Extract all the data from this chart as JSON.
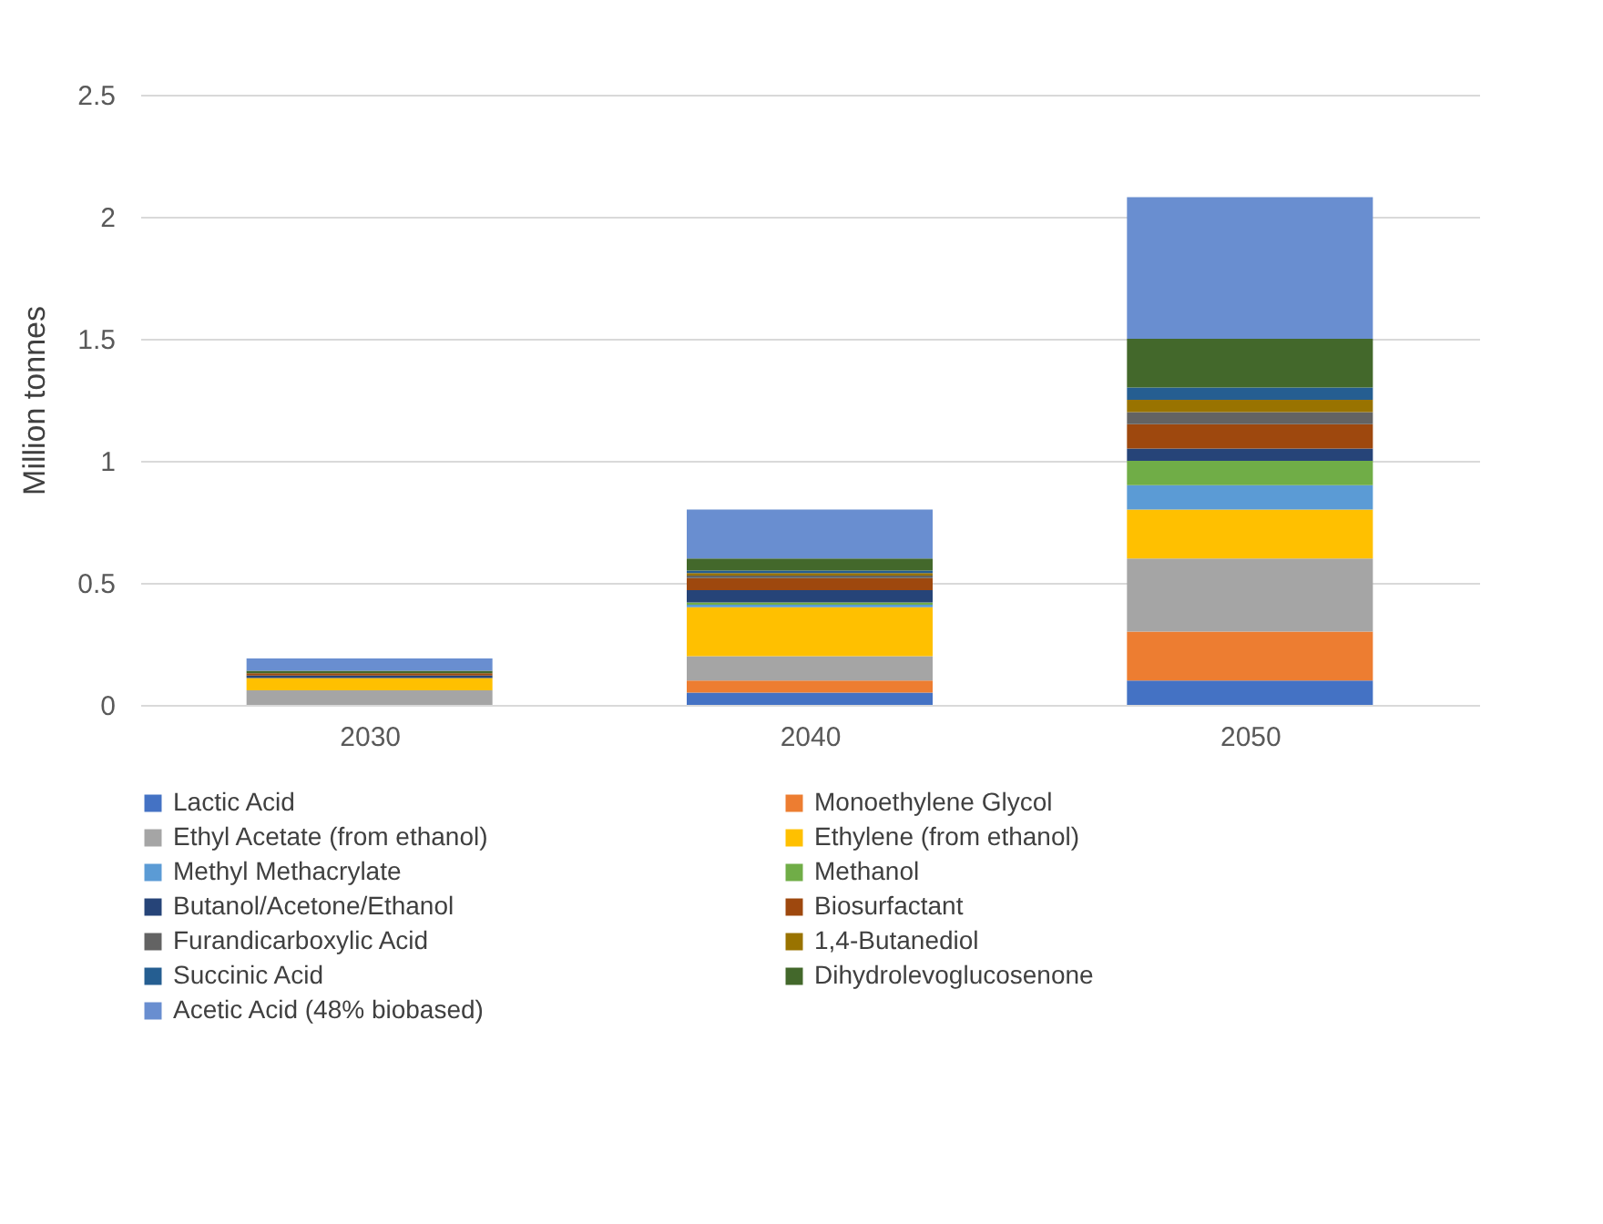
{
  "chart_data": {
    "type": "bar",
    "stacked": true,
    "ylabel": "Million tonnes",
    "categories": [
      "2030",
      "2040",
      "2050"
    ],
    "series": [
      {
        "name": "Lactic Acid",
        "color": "#4472c4",
        "values": [
          0,
          0.05,
          0.1
        ]
      },
      {
        "name": "Monoethylene Glycol",
        "color": "#ed7d31",
        "values": [
          0,
          0.05,
          0.2
        ]
      },
      {
        "name": "Ethyl Acetate (from ethanol)",
        "color": "#a5a5a5",
        "values": [
          0.06,
          0.1,
          0.3
        ]
      },
      {
        "name": "Ethylene (from ethanol)",
        "color": "#ffc000",
        "values": [
          0.05,
          0.2,
          0.2
        ]
      },
      {
        "name": "Methyl Methacrylate",
        "color": "#5b9bd5",
        "values": [
          0,
          0.01,
          0.1
        ]
      },
      {
        "name": "Methanol",
        "color": "#70ad47",
        "values": [
          0,
          0.01,
          0.1
        ]
      },
      {
        "name": "Butanol/Acetone/Ethanol",
        "color": "#264478",
        "values": [
          0.01,
          0.05,
          0.05
        ]
      },
      {
        "name": "Biosurfactant",
        "color": "#9e480e",
        "values": [
          0.01,
          0.05,
          0.1
        ]
      },
      {
        "name": "Furandicarboxylic Acid",
        "color": "#636363",
        "values": [
          0,
          0.01,
          0.05
        ]
      },
      {
        "name": "1,4-Butanediol",
        "color": "#997300",
        "values": [
          0,
          0.01,
          0.05
        ]
      },
      {
        "name": "Succinic Acid",
        "color": "#255e91",
        "values": [
          0,
          0.01,
          0.05
        ]
      },
      {
        "name": "Dihydrolevoglucosenone",
        "color": "#43682b",
        "values": [
          0.01,
          0.05,
          0.2
        ]
      },
      {
        "name": "Acetic Acid (48% biobased)",
        "color": "#698ed0",
        "values": [
          0.05,
          0.2,
          0.58
        ]
      }
    ],
    "ylim": [
      0,
      2.5
    ],
    "yticks": [
      0,
      0.5,
      1,
      1.5,
      2,
      2.5
    ],
    "grid": "y",
    "legend": "bottom"
  }
}
